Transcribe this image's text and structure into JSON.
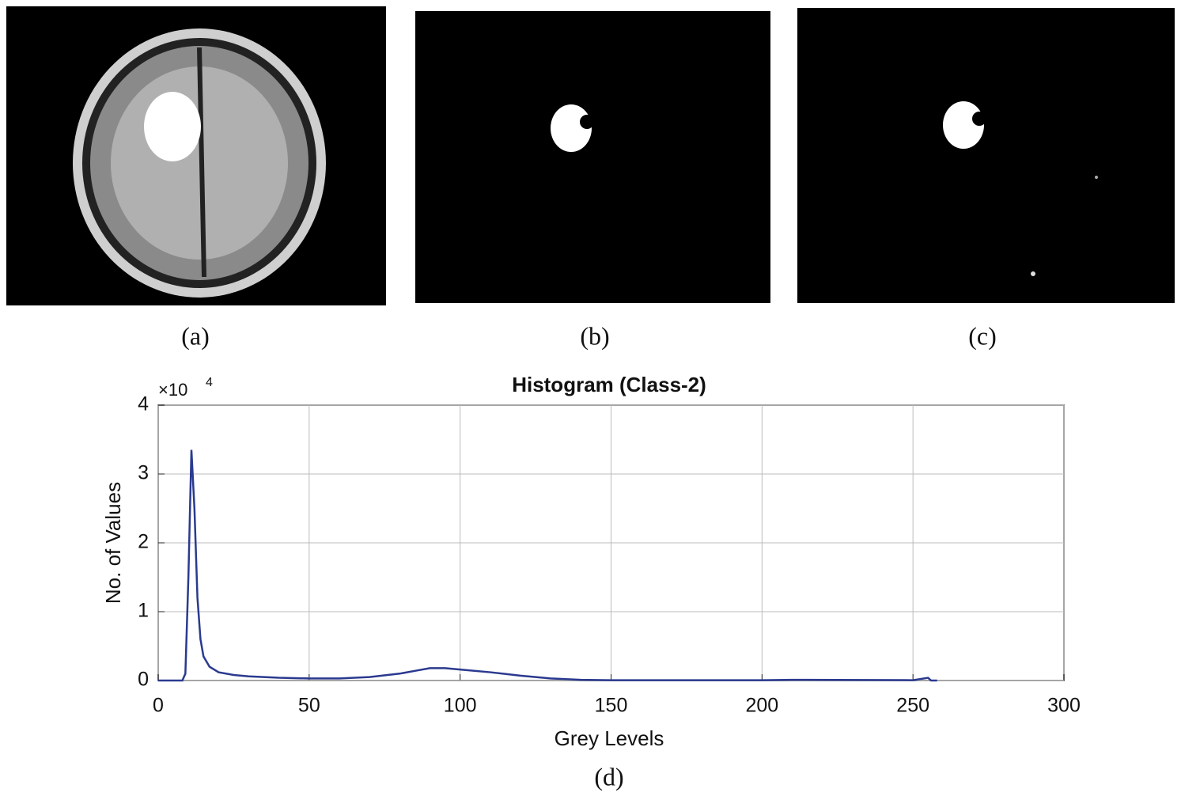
{
  "panels": {
    "captions": [
      "(a)",
      "(b)",
      "(c)",
      "(d)"
    ]
  },
  "chart_data": {
    "type": "line",
    "title": "Histogram (Class-2)",
    "x_label": "Grey Levels",
    "y_label": "No. of Values",
    "y_scale_label": {
      "base": "×10",
      "exponent": "4"
    },
    "xlim": [
      0,
      300
    ],
    "xticks": [
      0,
      50,
      100,
      150,
      200,
      250,
      300
    ],
    "ylim": [
      0,
      4
    ],
    "yticks": [
      0,
      1,
      2,
      3,
      4
    ],
    "grid": true,
    "series": [
      {
        "name": "Class-2",
        "color": "#2b3a8f",
        "x": [
          0,
          8,
          9,
          10,
          11,
          12,
          13,
          14,
          15,
          17,
          20,
          25,
          30,
          40,
          50,
          60,
          70,
          80,
          85,
          90,
          95,
          100,
          110,
          120,
          130,
          140,
          150,
          200,
          210,
          250,
          255,
          256,
          258
        ],
        "values": [
          0,
          0,
          0.1,
          1.5,
          3.35,
          2.5,
          1.2,
          0.6,
          0.35,
          0.2,
          0.12,
          0.08,
          0.06,
          0.04,
          0.03,
          0.03,
          0.05,
          0.1,
          0.14,
          0.18,
          0.18,
          0.16,
          0.12,
          0.07,
          0.03,
          0.01,
          0.005,
          0.005,
          0.01,
          0.005,
          0.04,
          0,
          0
        ]
      }
    ]
  }
}
